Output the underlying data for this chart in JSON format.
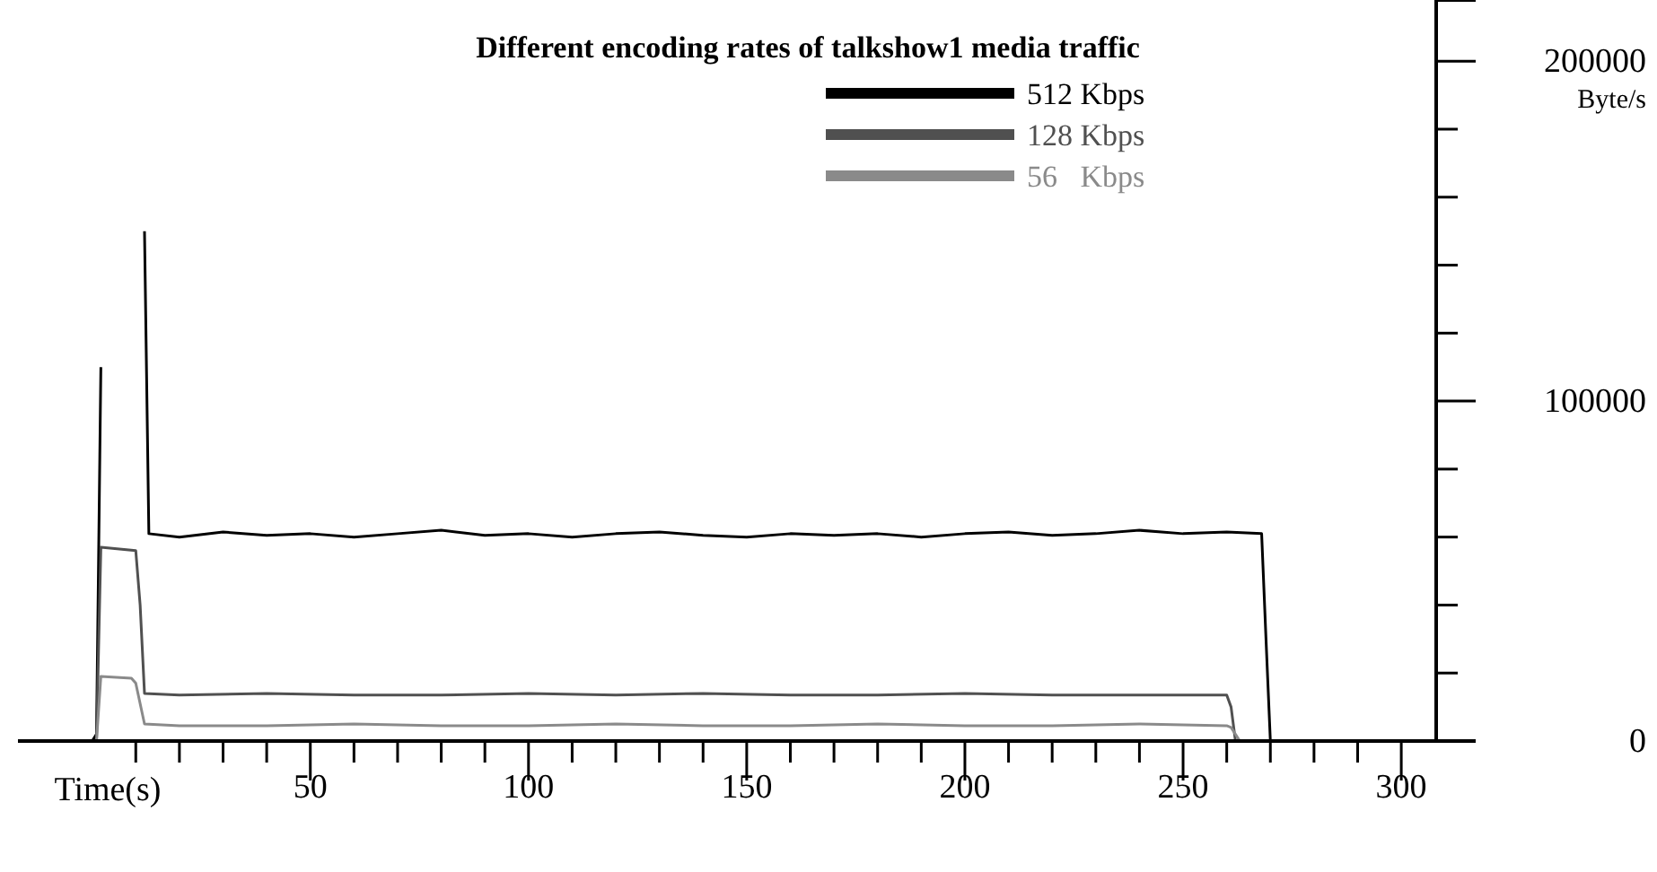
{
  "chart_data": {
    "type": "line",
    "title": "Different encoding rates of talkshow1 media traffic",
    "xlabel": "Time(s)",
    "ylabel": "Byte/s",
    "xlim": [
      -17,
      308
    ],
    "xticks": [
      {
        "value": 10,
        "label": null
      },
      {
        "value": 20,
        "label": null
      },
      {
        "value": 30,
        "label": null
      },
      {
        "value": 40,
        "label": null
      },
      50,
      {
        "value": 60,
        "label": null
      },
      {
        "value": 70,
        "label": null
      },
      {
        "value": 80,
        "label": null
      },
      {
        "value": 90,
        "label": null
      },
      100,
      {
        "value": 110,
        "label": null
      },
      {
        "value": 120,
        "label": null
      },
      {
        "value": 130,
        "label": null
      },
      {
        "value": 140,
        "label": null
      },
      150,
      {
        "value": 160,
        "label": null
      },
      {
        "value": 170,
        "label": null
      },
      {
        "value": 180,
        "label": null
      },
      {
        "value": 190,
        "label": null
      },
      200,
      {
        "value": 210,
        "label": null
      },
      {
        "value": 220,
        "label": null
      },
      {
        "value": 230,
        "label": null
      },
      {
        "value": 240,
        "label": null
      },
      250,
      {
        "value": 260,
        "label": null
      },
      {
        "value": 270,
        "label": null
      },
      {
        "value": 280,
        "label": null
      },
      {
        "value": 290,
        "label": null
      },
      300
    ],
    "ylim": [
      0,
      218000
    ],
    "yticks": [
      0,
      {
        "value": 20000,
        "label": null
      },
      {
        "value": 40000,
        "label": null
      },
      {
        "value": 60000,
        "label": null
      },
      {
        "value": 80000,
        "label": null
      },
      100000,
      {
        "value": 120000,
        "label": null
      },
      {
        "value": 140000,
        "label": null
      },
      {
        "value": 160000,
        "label": null
      },
      {
        "value": 180000,
        "label": null
      },
      200000
    ],
    "grid": false,
    "legend": "top right",
    "marker": "none",
    "line_style": "solid",
    "series": [
      {
        "name": "512 Kbps",
        "color": "#000000",
        "x": [
          -17,
          0,
          1,
          2,
          2.5,
          11,
          12,
          13,
          20,
          30,
          40,
          50,
          60,
          70,
          80,
          90,
          100,
          110,
          120,
          130,
          140,
          150,
          160,
          170,
          180,
          190,
          200,
          210,
          220,
          230,
          240,
          250,
          260,
          268,
          269,
          270,
          308
        ],
        "values": [
          0,
          0,
          2000,
          110000,
          null,
          null,
          150000,
          61000,
          60000,
          61500,
          60500,
          61000,
          60000,
          61000,
          62000,
          60500,
          61000,
          60000,
          61000,
          61500,
          60500,
          60000,
          61000,
          60500,
          61000,
          60000,
          61000,
          61500,
          60500,
          61000,
          62000,
          61000,
          61500,
          61000,
          30000,
          0,
          0
        ]
      },
      {
        "name": "128 Kbps",
        "color": "#505050",
        "x": [
          -17,
          1,
          2,
          10,
          11,
          12,
          20,
          40,
          60,
          80,
          100,
          120,
          140,
          160,
          180,
          200,
          220,
          240,
          260,
          261,
          262,
          308
        ],
        "values": [
          0,
          0,
          57000,
          56000,
          40000,
          14000,
          13500,
          14000,
          13500,
          13500,
          14000,
          13500,
          14000,
          13500,
          13500,
          14000,
          13500,
          13500,
          13500,
          10000,
          0,
          0
        ]
      },
      {
        "name": "56   Kbps",
        "color": "#8a8a8a",
        "x": [
          -17,
          1,
          2,
          9,
          10,
          12,
          20,
          40,
          60,
          80,
          100,
          120,
          140,
          160,
          180,
          200,
          220,
          240,
          260,
          261,
          263,
          308
        ],
        "values": [
          0,
          0,
          19000,
          18500,
          17000,
          5000,
          4500,
          4500,
          5000,
          4500,
          4500,
          5000,
          4500,
          4500,
          5000,
          4500,
          4500,
          5000,
          4500,
          4000,
          0,
          0
        ]
      }
    ]
  }
}
